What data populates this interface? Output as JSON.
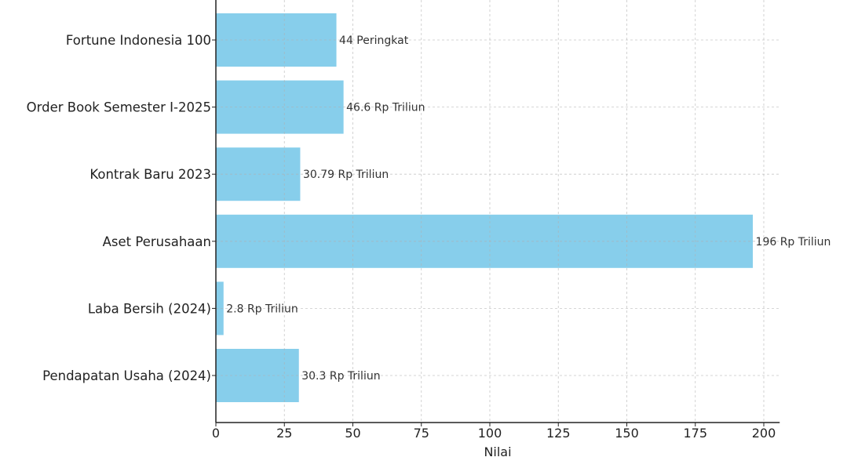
{
  "chart_data": {
    "type": "bar",
    "orientation": "horizontal",
    "title": "",
    "xlabel": "Nilai",
    "ylabel": "",
    "xlim": [
      0,
      205.8
    ],
    "xticks": [
      0,
      25,
      50,
      75,
      100,
      125,
      150,
      175,
      200
    ],
    "grid": true,
    "categories": [
      "Fortune Indonesia 100",
      "Order Book Semester I-2025",
      "Kontrak Baru 2023",
      "Aset Perusahaan",
      "Laba Bersih (2024)",
      "Pendapatan Usaha (2024)"
    ],
    "values": [
      44,
      46.6,
      30.79,
      196,
      2.8,
      30.3
    ],
    "data_labels": [
      "44 Peringkat",
      "46.6 Rp Triliun",
      "30.79 Rp Triliun",
      "196 Rp Triliun",
      "2.8 Rp Triliun",
      "30.3 Rp Triliun"
    ],
    "bar_color": "#87CEEB"
  }
}
